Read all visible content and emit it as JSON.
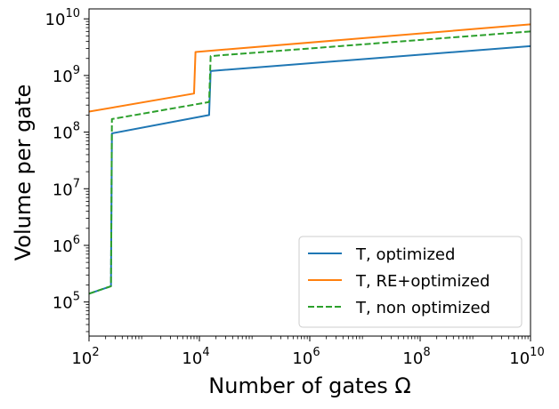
{
  "chart_data": {
    "type": "line",
    "title": "",
    "xlabel": "Number of gates Ω",
    "ylabel": "Volume per gate",
    "xscale": "log",
    "yscale": "log",
    "xlim": [
      100,
      10000000000
    ],
    "ylim": [
      25000,
      15000000000
    ],
    "x_ticks": [
      {
        "value": 100,
        "base": "10",
        "exp": "2"
      },
      {
        "value": 10000,
        "base": "10",
        "exp": "4"
      },
      {
        "value": 1000000,
        "base": "10",
        "exp": "6"
      },
      {
        "value": 100000000,
        "base": "10",
        "exp": "8"
      },
      {
        "value": 10000000000,
        "base": "10",
        "exp": "10"
      }
    ],
    "y_ticks": [
      {
        "value": 100000,
        "base": "10",
        "exp": "5"
      },
      {
        "value": 1000000,
        "base": "10",
        "exp": "6"
      },
      {
        "value": 10000000,
        "base": "10",
        "exp": "7"
      },
      {
        "value": 100000000,
        "base": "10",
        "exp": "8"
      },
      {
        "value": 1000000000,
        "base": "10",
        "exp": "9"
      },
      {
        "value": 10000000000,
        "base": "10",
        "exp": "10"
      }
    ],
    "grid": false,
    "legend_position": "lower-right",
    "series": [
      {
        "name": "T, optimized",
        "color": "#1f77b4",
        "style": "solid",
        "x": [
          100,
          250,
          260,
          15000,
          16000,
          10000000000
        ],
        "y": [
          140000,
          190000,
          95000000,
          200000000,
          1200000000,
          3300000000
        ]
      },
      {
        "name": "T, RE+optimized",
        "color": "#ff7f0e",
        "style": "solid",
        "x": [
          100,
          8000,
          8500,
          10000000000
        ],
        "y": [
          230000000,
          480000000,
          2600000000,
          8000000000
        ]
      },
      {
        "name": "T, non optimized",
        "color": "#2ca02c",
        "style": "dashed",
        "x": [
          100,
          250,
          260,
          15000,
          16000,
          10000000000
        ],
        "y": [
          140000,
          190000,
          170000000,
          340000000,
          2200000000,
          6000000000
        ]
      }
    ]
  }
}
